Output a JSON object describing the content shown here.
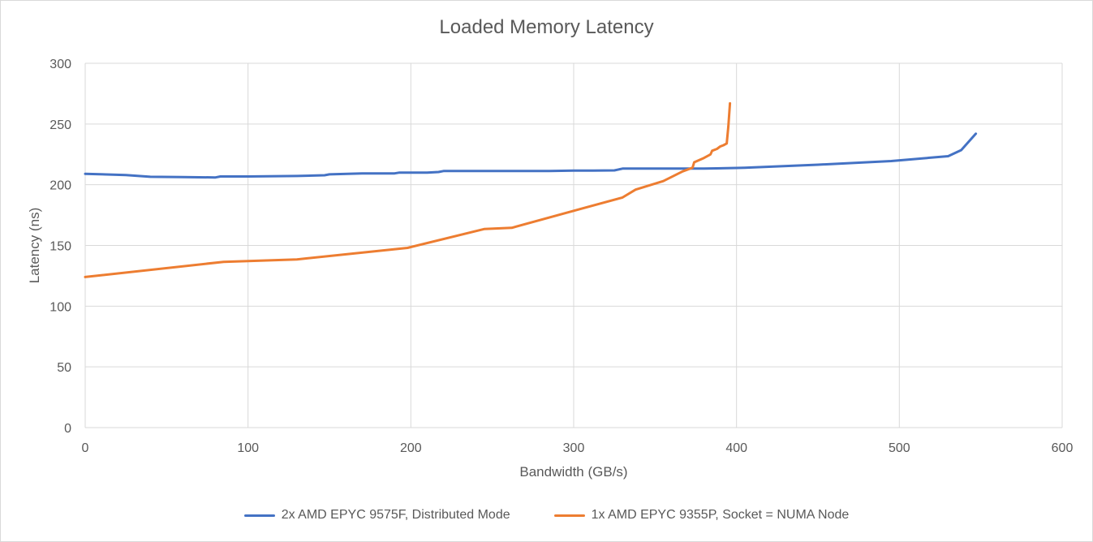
{
  "chart_data": {
    "type": "line",
    "title": "Loaded Memory Latency",
    "xlabel": "Bandwidth (GB/s)",
    "ylabel": "Latency (ns)",
    "xlim": [
      0,
      600
    ],
    "ylim": [
      0,
      300
    ],
    "xticks": [
      0,
      100,
      200,
      300,
      400,
      500,
      600
    ],
    "yticks": [
      0,
      50,
      100,
      150,
      200,
      250,
      300
    ],
    "grid": true,
    "legend_position": "bottom",
    "series": [
      {
        "name": "2x AMD EPYC 9575F, Distributed Mode",
        "color": "#4472c4",
        "points": [
          [
            0,
            209
          ],
          [
            25,
            208
          ],
          [
            40,
            206.5
          ],
          [
            60,
            206.3
          ],
          [
            80,
            206
          ],
          [
            83,
            206.8
          ],
          [
            100,
            206.8
          ],
          [
            130,
            207.2
          ],
          [
            147,
            207.8
          ],
          [
            150,
            208.5
          ],
          [
            170,
            209.3
          ],
          [
            190,
            209.3
          ],
          [
            193,
            210
          ],
          [
            210,
            210
          ],
          [
            217,
            210.5
          ],
          [
            220,
            211.3
          ],
          [
            260,
            211.3
          ],
          [
            285,
            211.3
          ],
          [
            300,
            211.7
          ],
          [
            312,
            211.7
          ],
          [
            325,
            211.8
          ],
          [
            330,
            213.3
          ],
          [
            360,
            213.3
          ],
          [
            380,
            213.3
          ],
          [
            400,
            213.8
          ],
          [
            405,
            214
          ],
          [
            450,
            216.5
          ],
          [
            495,
            219.5
          ],
          [
            530,
            223.5
          ],
          [
            538,
            228.5
          ],
          [
            547,
            242
          ]
        ]
      },
      {
        "name": "1x AMD EPYC 9355P, Socket = NUMA Node",
        "color": "#ed7d31",
        "points": [
          [
            0,
            124
          ],
          [
            85,
            136.5
          ],
          [
            130,
            138.5
          ],
          [
            198,
            148
          ],
          [
            245,
            163.5
          ],
          [
            262,
            164.5
          ],
          [
            300,
            178.5
          ],
          [
            330,
            189.5
          ],
          [
            338,
            196
          ],
          [
            355,
            203
          ],
          [
            367,
            211
          ],
          [
            373,
            214
          ],
          [
            374,
            218.5
          ],
          [
            380,
            222
          ],
          [
            384,
            225
          ],
          [
            385,
            228
          ],
          [
            388,
            229.5
          ],
          [
            390,
            231.5
          ],
          [
            392,
            232.5
          ],
          [
            394,
            234
          ],
          [
            395,
            248
          ],
          [
            396,
            267
          ]
        ]
      }
    ]
  }
}
